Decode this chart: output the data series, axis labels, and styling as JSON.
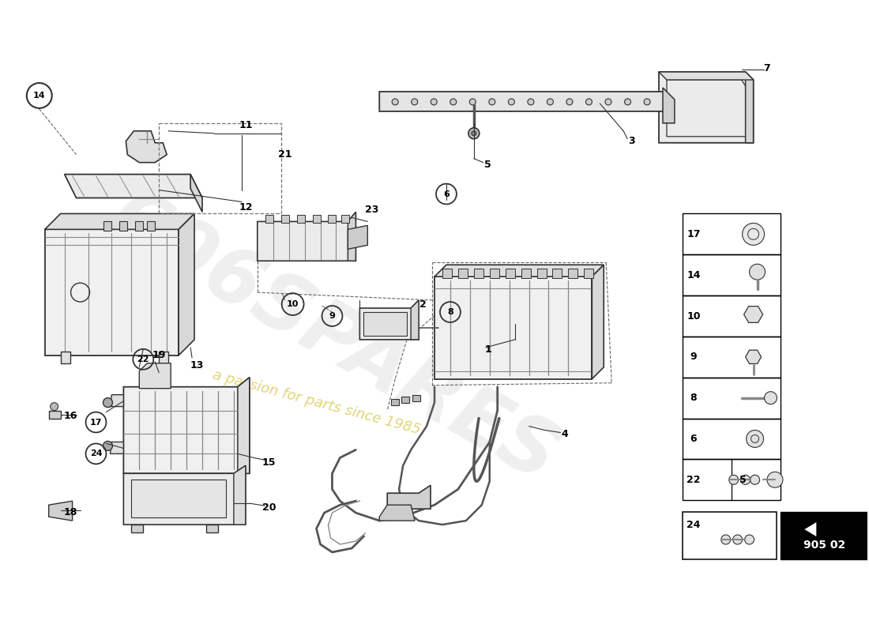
{
  "bg_color": "#ffffff",
  "watermark_logo": "606SPARES",
  "watermark_text": "a passion for parts since 1985",
  "diagram_number": "905 02",
  "line_color": "#333333",
  "light_gray": "#aaaaaa",
  "mid_gray": "#888888"
}
